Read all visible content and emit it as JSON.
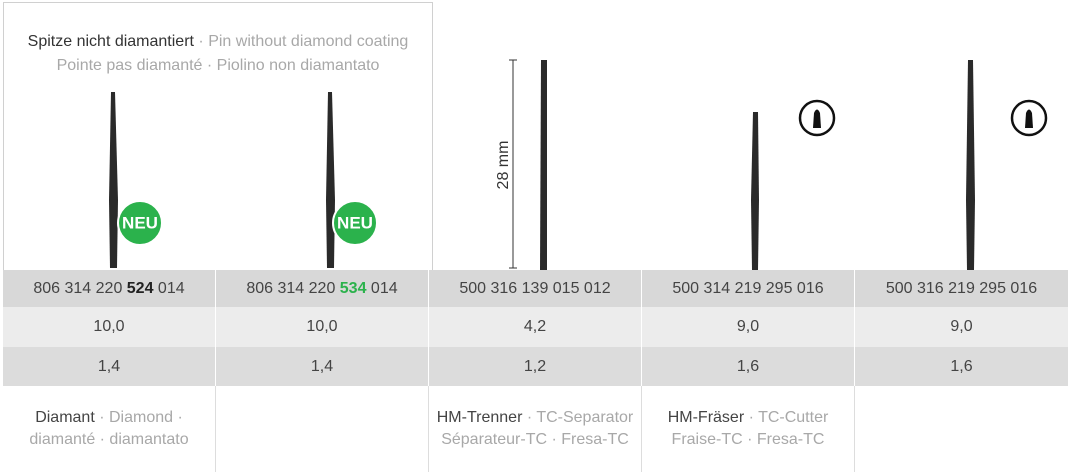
{
  "note": {
    "primary": "Spitze nicht diamantiert",
    "secondary": " · Pin without diamond coating",
    "line2": "Pointe pas diamanté · Piolino non diamantato"
  },
  "badges": [
    "NEU",
    "NEU"
  ],
  "scale_label": "28 mm",
  "table": {
    "codes": [
      {
        "prefix": "806 314 220 ",
        "highlight": "524",
        "suffix": " 014"
      },
      {
        "prefix": "806 314 220 ",
        "highlight": "534",
        "suffix": " 014"
      },
      "500 316 139 015 012",
      "500 314 219 295 016",
      "500 316 219 295 016"
    ],
    "row2": [
      "10,0",
      "10,0",
      "4,2",
      "9,0",
      "9,0"
    ],
    "row3": [
      "1,4",
      "1,4",
      "1,2",
      "1,6",
      "1,6"
    ],
    "descriptions": [
      {
        "primary": "Diamant",
        "secondary": " · Diamond ·",
        "line2": "diamanté · diamantato"
      },
      null,
      {
        "primary": "HM-Trenner",
        "secondary": " · TC-Separator",
        "line2": "Séparateur-TC · Fresa-TC"
      },
      {
        "primary": "HM-Fräser",
        "secondary": " · TC-Cutter",
        "line2": "Fraise-TC · Fresa-TC"
      },
      null
    ]
  }
}
